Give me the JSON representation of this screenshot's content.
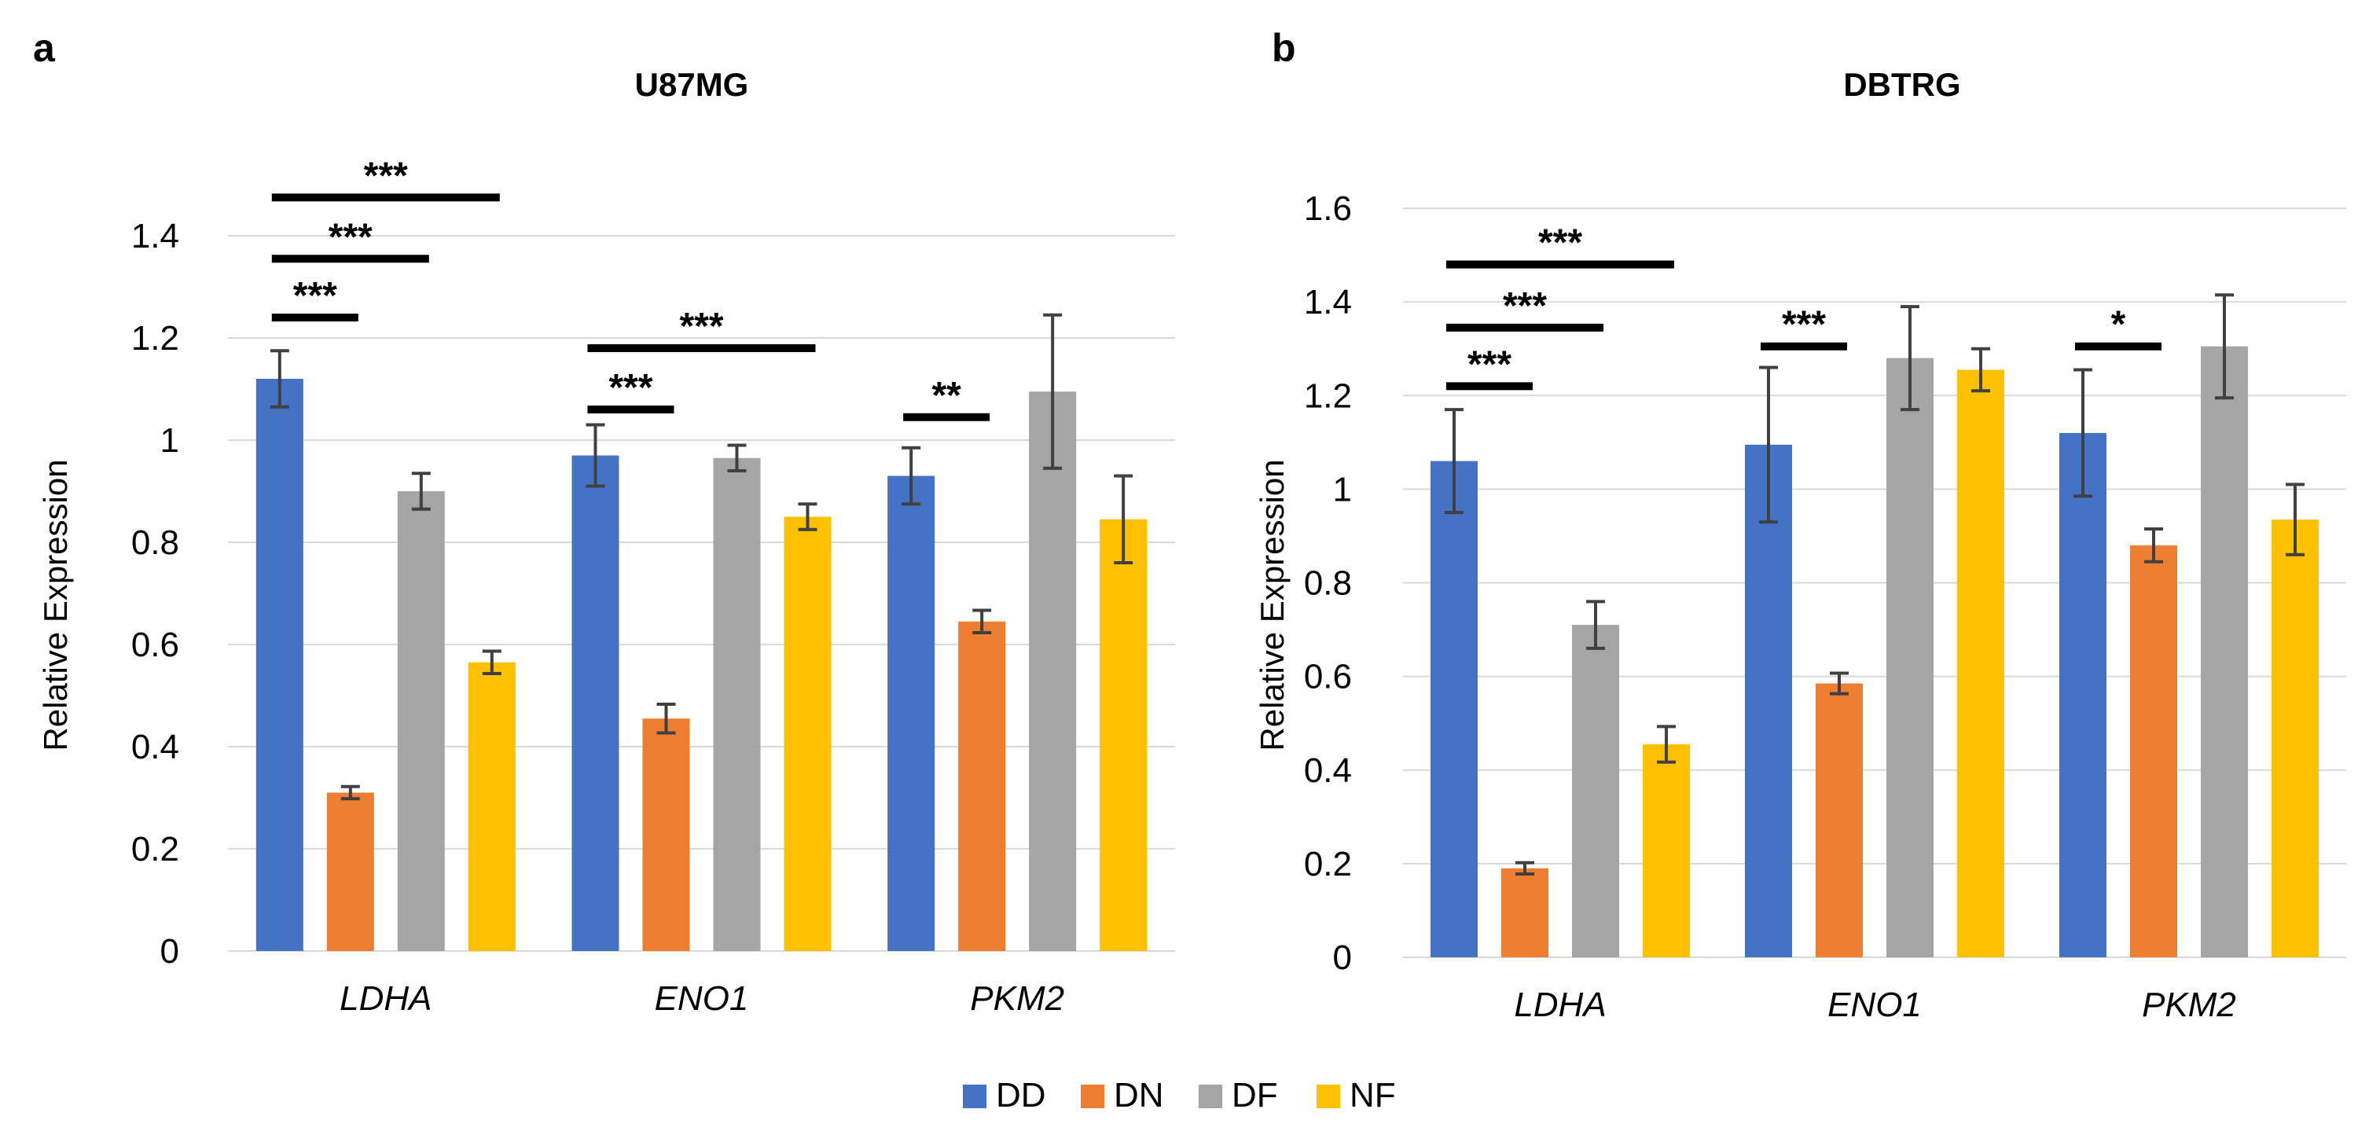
{
  "chart_data": [
    {
      "panel": "a",
      "type": "bar",
      "title": "U87MG",
      "ylabel": "Relative Expression",
      "xlabel": "",
      "ylim": [
        0,
        1.4
      ],
      "yticks": [
        "0",
        "0.2",
        "0.4",
        "0.6",
        "0.8",
        "1",
        "1.2",
        "1.4"
      ],
      "grid": true,
      "categories": [
        "LDHA",
        "ENO1",
        "PKM2"
      ],
      "series": [
        {
          "name": "DD",
          "color": "#4472c4",
          "values": [
            1.12,
            0.97,
            0.93
          ],
          "errors": [
            0.055,
            0.06,
            0.055
          ]
        },
        {
          "name": "DN",
          "color": "#ed7d31",
          "values": [
            0.31,
            0.455,
            0.645
          ],
          "errors": [
            0.012,
            0.028,
            0.022
          ]
        },
        {
          "name": "DF",
          "color": "#a5a5a5",
          "values": [
            0.9,
            0.965,
            1.095
          ],
          "errors": [
            0.035,
            0.025,
            0.15
          ]
        },
        {
          "name": "NF",
          "color": "#ffc000",
          "values": [
            0.565,
            0.85,
            0.845
          ],
          "errors": [
            0.022,
            0.025,
            0.085
          ]
        }
      ],
      "significance": [
        {
          "category": 0,
          "from": 0,
          "to": 1,
          "label": "***",
          "y": 1.24
        },
        {
          "category": 0,
          "from": 0,
          "to": 2,
          "label": "***",
          "y": 1.355
        },
        {
          "category": 0,
          "from": 0,
          "to": 3,
          "label": "***",
          "y": 1.475
        },
        {
          "category": 1,
          "from": 0,
          "to": 1,
          "label": "***",
          "y": 1.06
        },
        {
          "category": 1,
          "from": 0,
          "to": 3,
          "label": "***",
          "y": 1.18
        },
        {
          "category": 2,
          "from": 0,
          "to": 1,
          "label": "**",
          "y": 1.045
        }
      ]
    },
    {
      "panel": "b",
      "type": "bar",
      "title": "DBTRG",
      "ylabel": "Relative Expression",
      "xlabel": "",
      "ylim": [
        0,
        1.6
      ],
      "yticks": [
        "0",
        "0.2",
        "0.4",
        "0.6",
        "0.8",
        "1",
        "1.2",
        "1.4",
        "1.6"
      ],
      "grid": true,
      "categories": [
        "LDHA",
        "ENO1",
        "PKM2"
      ],
      "series": [
        {
          "name": "DD",
          "color": "#4472c4",
          "values": [
            1.06,
            1.095,
            1.12
          ],
          "errors": [
            0.11,
            0.165,
            0.135
          ]
        },
        {
          "name": "DN",
          "color": "#ed7d31",
          "values": [
            0.19,
            0.585,
            0.88
          ],
          "errors": [
            0.012,
            0.022,
            0.035
          ]
        },
        {
          "name": "DF",
          "color": "#a5a5a5",
          "values": [
            0.71,
            1.28,
            1.305
          ],
          "errors": [
            0.05,
            0.11,
            0.11
          ]
        },
        {
          "name": "NF",
          "color": "#ffc000",
          "values": [
            0.455,
            1.255,
            0.935
          ],
          "errors": [
            0.038,
            0.045,
            0.075
          ]
        }
      ],
      "significance": [
        {
          "category": 0,
          "from": 0,
          "to": 1,
          "label": "***",
          "y": 1.22
        },
        {
          "category": 0,
          "from": 0,
          "to": 2,
          "label": "***",
          "y": 1.345
        },
        {
          "category": 0,
          "from": 0,
          "to": 3,
          "label": "***",
          "y": 1.48
        },
        {
          "category": 1,
          "from": 0,
          "to": 1,
          "label": "***",
          "y": 1.305
        },
        {
          "category": 2,
          "from": 0,
          "to": 1,
          "label": "*",
          "y": 1.305
        }
      ]
    }
  ],
  "legend": {
    "placement": "bottom-center",
    "items": [
      {
        "name": "DD",
        "color": "#4472c4"
      },
      {
        "name": "DN",
        "color": "#ed7d31"
      },
      {
        "name": "DF",
        "color": "#a5a5a5"
      },
      {
        "name": "NF",
        "color": "#ffc000"
      }
    ]
  }
}
